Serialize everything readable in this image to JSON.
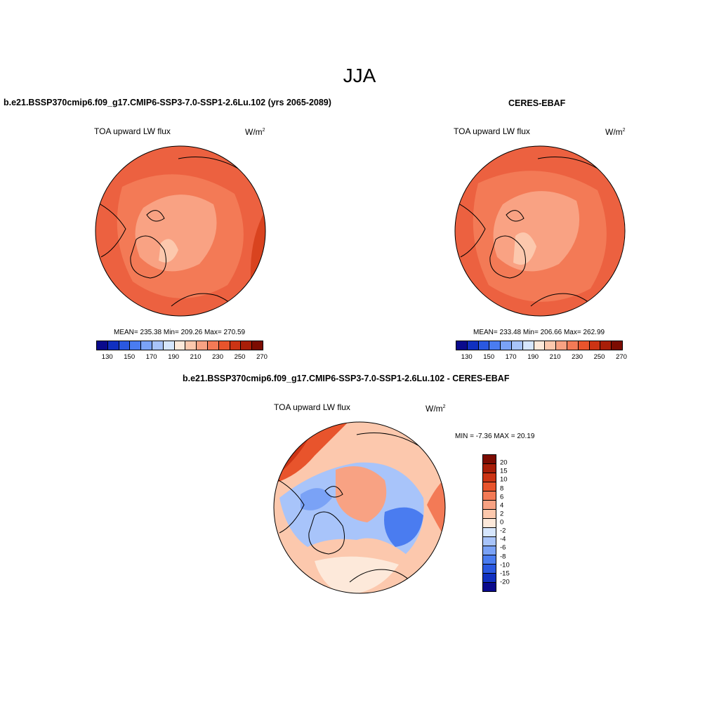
{
  "season": "JJA",
  "top_left": {
    "title": "b.e21.BSSP370cmip6.f09_g17.CMIP6-SSP3-7.0-SSP1-2.6Lu.102 (yrs 2065-2089)",
    "label": "TOA upward LW flux",
    "units_base": "W/m",
    "units_exp": "2",
    "stats": "MEAN= 235.38  Min= 209.26  Max= 270.59"
  },
  "top_right": {
    "title": "CERES-EBAF",
    "label": "TOA upward LW flux",
    "units_base": "W/m",
    "units_exp": "2",
    "stats": "MEAN= 233.48  Min= 206.66  Max= 262.99"
  },
  "bottom": {
    "title": "b.e21.BSSP370cmip6.f09_g17.CMIP6-SSP3-7.0-SSP1-2.6Lu.102 - CERES-EBAF",
    "label": "TOA upward LW flux",
    "units_base": "W/m",
    "units_exp": "2",
    "minmax": "MIN =  -7.36 MAX =  20.19"
  },
  "abs_colorbar": {
    "colors": [
      "#0a0a8c",
      "#1030c0",
      "#2a58e0",
      "#4a7cf0",
      "#7aa2f6",
      "#a8c4fa",
      "#d6e6fd",
      "#fde9da",
      "#fcc8ad",
      "#f8a283",
      "#f37a56",
      "#e8542c",
      "#cc3414",
      "#a81e08",
      "#7c0c02"
    ],
    "tick_labels": [
      "130",
      "150",
      "170",
      "190",
      "210",
      "230",
      "250",
      "270"
    ]
  },
  "diff_colorbar": {
    "colors": [
      "#7c0c02",
      "#a81e08",
      "#cc3414",
      "#e8542c",
      "#f37a56",
      "#f8a283",
      "#fcc8ad",
      "#fde9da",
      "#d6e6fd",
      "#a8c4fa",
      "#7aa2f6",
      "#4a7cf0",
      "#2a58e0",
      "#1030c0",
      "#0a0a8c"
    ],
    "tick_labels": [
      "20",
      "15",
      "10",
      "8",
      "6",
      "4",
      "2",
      "0",
      "-2",
      "-4",
      "-6",
      "-8",
      "-10",
      "-15",
      "-20"
    ]
  }
}
